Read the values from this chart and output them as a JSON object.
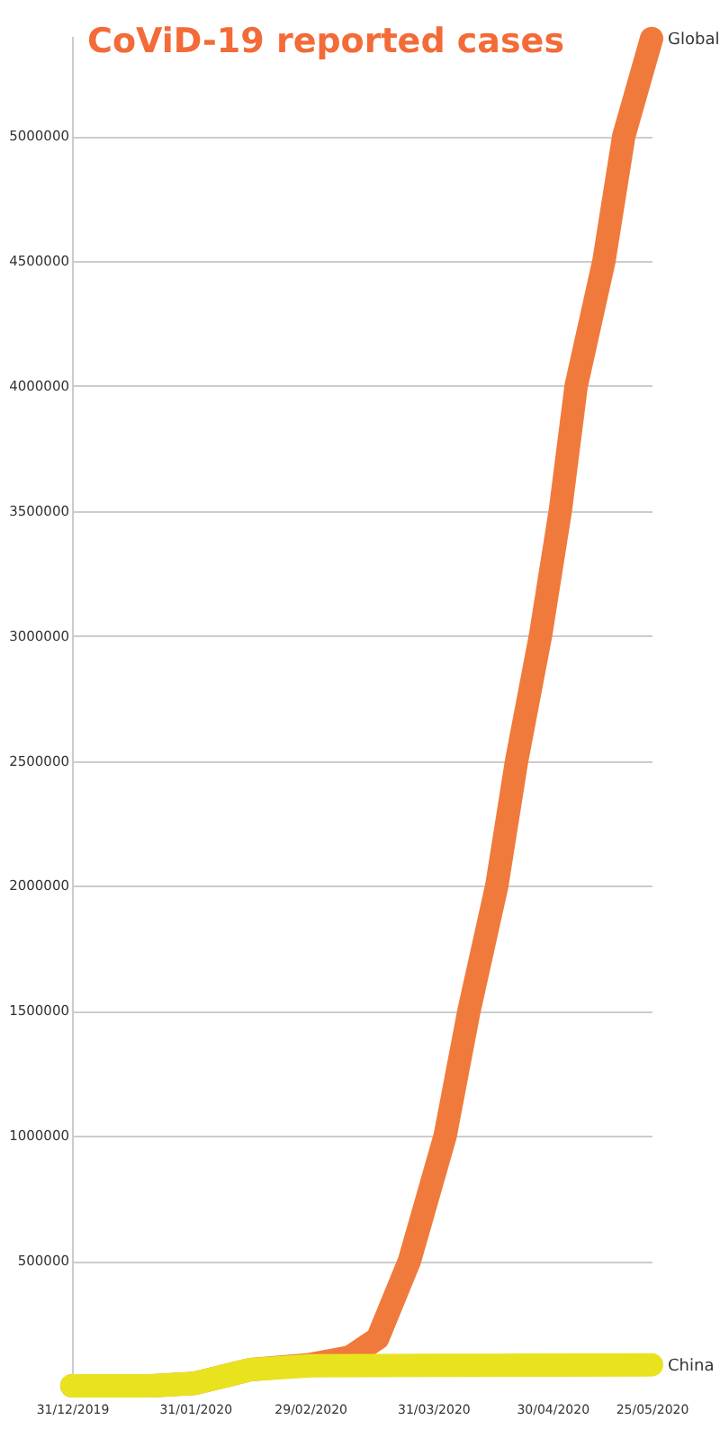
{
  "chart_data": {
    "type": "line",
    "title": "CoViD-19 reported cases",
    "xlim": [
      "2019-12-31",
      "2020-05-25"
    ],
    "xticks": [
      {
        "value": "2019-12-31",
        "label": "31/12/2019"
      },
      {
        "value": "2020-01-31",
        "label": "31/01/2020"
      },
      {
        "value": "2020-02-29",
        "label": "29/02/2020"
      },
      {
        "value": "2020-03-31",
        "label": "31/03/2020"
      },
      {
        "value": "2020-04-30",
        "label": "30/04/2020"
      },
      {
        "value": "2020-05-25",
        "label": "25/05/2020"
      }
    ],
    "ylim": [
      0,
      5400000
    ],
    "yticks": [
      500000,
      1000000,
      1500000,
      2000000,
      2500000,
      3000000,
      3500000,
      4000000,
      4500000,
      5000000
    ],
    "grid": "y",
    "legend": false,
    "marker": "none",
    "line_style": "solid",
    "series": [
      {
        "name": "Global",
        "color": "#f07a3c",
        "x": [
          "2019-12-31",
          "2020-01-20",
          "2020-01-31",
          "2020-02-14",
          "2020-02-29",
          "2020-03-10",
          "2020-03-17",
          "2020-03-25",
          "2020-04-03",
          "2020-04-09",
          "2020-04-16",
          "2020-04-21",
          "2020-04-27",
          "2020-05-02",
          "2020-05-06",
          "2020-05-13",
          "2020-05-18",
          "2020-05-25"
        ],
        "values": [
          0,
          0,
          10000,
          65000,
          85000,
          115000,
          190000,
          500000,
          1000000,
          1500000,
          2000000,
          2500000,
          3000000,
          3500000,
          4000000,
          4500000,
          5000000,
          5390000
        ]
      },
      {
        "name": "China",
        "color": "#e8e31e",
        "x": [
          "2019-12-31",
          "2020-01-20",
          "2020-01-31",
          "2020-02-14",
          "2020-02-29",
          "2020-03-31",
          "2020-05-25"
        ],
        "values": [
          0,
          0,
          10000,
          65000,
          80000,
          82000,
          84000
        ]
      }
    ]
  }
}
